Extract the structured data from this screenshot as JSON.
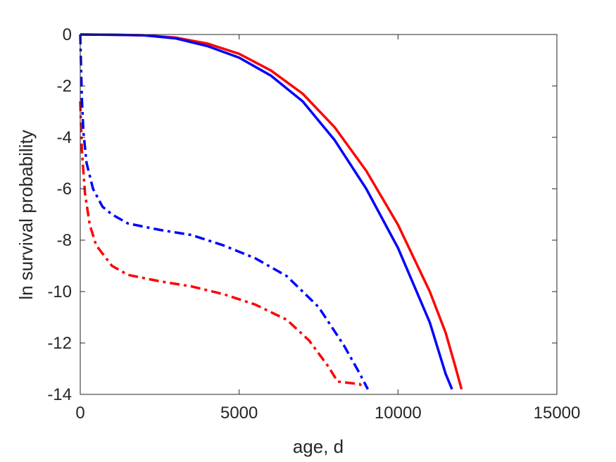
{
  "chart_data": {
    "type": "line",
    "xlabel": "age, d",
    "ylabel": "ln survival probability",
    "xlim": [
      0,
      15000
    ],
    "ylim": [
      -14,
      0
    ],
    "xticks": [
      0,
      5000,
      10000,
      15000
    ],
    "yticks": [
      0,
      -2,
      -4,
      -6,
      -8,
      -10,
      -12,
      -14
    ],
    "grid": false,
    "legend": "none",
    "series": [
      {
        "color": "#ff0000",
        "style": "solid",
        "points": [
          [
            0,
            0
          ],
          [
            1000,
            -0.01
          ],
          [
            2000,
            -0.03
          ],
          [
            3000,
            -0.12
          ],
          [
            4000,
            -0.35
          ],
          [
            5000,
            -0.75
          ],
          [
            6000,
            -1.4
          ],
          [
            7000,
            -2.3
          ],
          [
            8000,
            -3.6
          ],
          [
            9000,
            -5.3
          ],
          [
            10000,
            -7.4
          ],
          [
            11000,
            -10.0
          ],
          [
            11500,
            -11.6
          ],
          [
            11800,
            -12.9
          ],
          [
            12000,
            -13.8
          ]
        ]
      },
      {
        "color": "#0000ff",
        "style": "solid",
        "points": [
          [
            0,
            0
          ],
          [
            1000,
            -0.01
          ],
          [
            2000,
            -0.03
          ],
          [
            3000,
            -0.15
          ],
          [
            4000,
            -0.45
          ],
          [
            5000,
            -0.9
          ],
          [
            6000,
            -1.6
          ],
          [
            7000,
            -2.6
          ],
          [
            8000,
            -4.1
          ],
          [
            9000,
            -6.0
          ],
          [
            10000,
            -8.3
          ],
          [
            11000,
            -11.2
          ],
          [
            11500,
            -13.2
          ],
          [
            11700,
            -13.8
          ]
        ]
      },
      {
        "color": "#ff0000",
        "style": "dashdot",
        "points": [
          [
            0,
            -2.6
          ],
          [
            50,
            -4.5
          ],
          [
            150,
            -6.2
          ],
          [
            300,
            -7.4
          ],
          [
            500,
            -8.2
          ],
          [
            1000,
            -9.0
          ],
          [
            1500,
            -9.35
          ],
          [
            2500,
            -9.6
          ],
          [
            3500,
            -9.8
          ],
          [
            4500,
            -10.1
          ],
          [
            5500,
            -10.5
          ],
          [
            6500,
            -11.1
          ],
          [
            7200,
            -11.9
          ],
          [
            7800,
            -12.9
          ],
          [
            8100,
            -13.5
          ],
          [
            8800,
            -13.6
          ],
          [
            8900,
            -13.8
          ]
        ]
      },
      {
        "color": "#0000ff",
        "style": "dashdot",
        "points": [
          [
            0,
            0
          ],
          [
            20,
            -1.0
          ],
          [
            50,
            -2.5
          ],
          [
            100,
            -3.8
          ],
          [
            200,
            -5.0
          ],
          [
            400,
            -6.0
          ],
          [
            700,
            -6.7
          ],
          [
            1000,
            -7.0
          ],
          [
            1500,
            -7.35
          ],
          [
            2500,
            -7.6
          ],
          [
            3500,
            -7.8
          ],
          [
            4500,
            -8.2
          ],
          [
            5500,
            -8.7
          ],
          [
            6500,
            -9.4
          ],
          [
            7500,
            -10.6
          ],
          [
            8300,
            -12.1
          ],
          [
            8800,
            -13.2
          ],
          [
            9050,
            -13.8
          ]
        ]
      }
    ]
  }
}
